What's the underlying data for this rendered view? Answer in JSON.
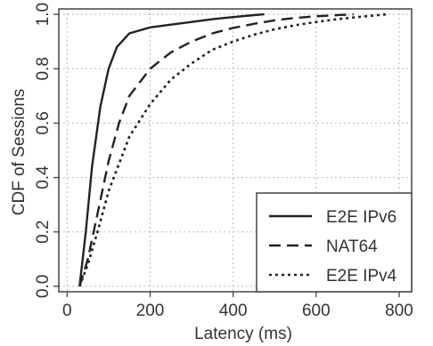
{
  "chart_data": {
    "type": "line",
    "title": "",
    "xlabel": "Latency (ms)",
    "ylabel": "CDF of Sessions",
    "xlim": [
      -20,
      830
    ],
    "ylim": [
      -0.02,
      1.02
    ],
    "xticks": [
      0,
      200,
      400,
      600,
      800
    ],
    "yticks": [
      0.0,
      0.2,
      0.4,
      0.6,
      0.8,
      1.0
    ],
    "xtick_labels": [
      "0",
      "200",
      "400",
      "600",
      "800"
    ],
    "ytick_labels": [
      "0.0",
      "0.2",
      "0.4",
      "0.6",
      "0.8",
      "1.0"
    ],
    "grid": true,
    "legend_position": "bottom-right",
    "colors": {
      "line": "#222222",
      "grid": "#b8b8b8",
      "frame": "#444444"
    },
    "series": [
      {
        "name": "E2E IPv6",
        "style": "solid",
        "x": [
          30,
          45,
          60,
          80,
          100,
          120,
          150,
          200,
          250,
          300,
          350,
          400,
          450,
          475
        ],
        "y": [
          0.0,
          0.2,
          0.44,
          0.66,
          0.8,
          0.88,
          0.93,
          0.952,
          0.962,
          0.972,
          0.982,
          0.99,
          0.997,
          1.0
        ]
      },
      {
        "name": "NAT64",
        "style": "dashed",
        "x": [
          30,
          50,
          75,
          100,
          125,
          150,
          200,
          250,
          300,
          350,
          400,
          450,
          500,
          550,
          600,
          650,
          690
        ],
        "y": [
          0.0,
          0.1,
          0.28,
          0.46,
          0.6,
          0.7,
          0.8,
          0.86,
          0.9,
          0.93,
          0.95,
          0.965,
          0.978,
          0.987,
          0.993,
          0.997,
          1.0
        ]
      },
      {
        "name": "E2E IPv4",
        "style": "dotted",
        "x": [
          30,
          50,
          75,
          100,
          150,
          200,
          250,
          300,
          350,
          400,
          450,
          500,
          550,
          600,
          650,
          700,
          770
        ],
        "y": [
          0.0,
          0.08,
          0.21,
          0.35,
          0.55,
          0.67,
          0.76,
          0.82,
          0.87,
          0.9,
          0.925,
          0.945,
          0.96,
          0.972,
          0.982,
          0.99,
          1.0
        ]
      }
    ]
  }
}
